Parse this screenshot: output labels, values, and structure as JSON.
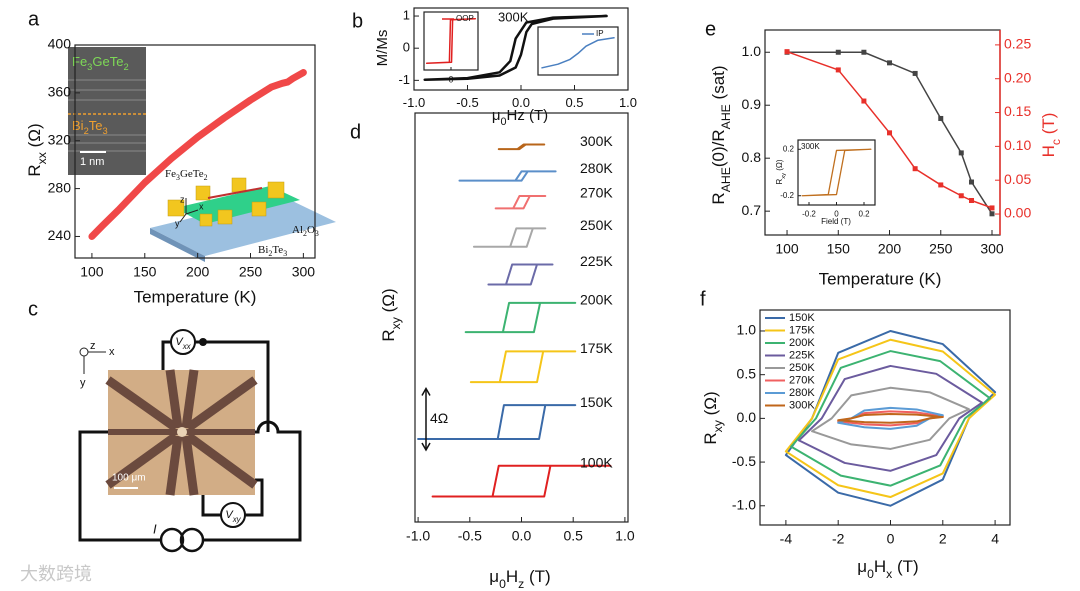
{
  "chart_data": [
    {
      "type": "line",
      "panel": "a",
      "xlabel": "Temperature (K)",
      "ylabel": [
        "R",
        "xx",
        " (Ω)"
      ],
      "xlim": [
        84,
        311
      ],
      "ylim": [
        222,
        400
      ],
      "xticks": [
        100,
        150,
        200,
        250,
        300
      ],
      "yticks": [
        240,
        280,
        320,
        360,
        400
      ],
      "series": [
        {
          "color": "#f04848",
          "x": [
            100,
            110,
            125,
            150,
            175,
            200,
            225,
            250,
            270,
            280,
            285,
            290,
            300
          ],
          "values": [
            240,
            249,
            262,
            285,
            305,
            323,
            339,
            354,
            365,
            368,
            369,
            372,
            377
          ]
        }
      ]
    },
    {
      "type": "line",
      "panel": "b",
      "xlabel": [
        "μ",
        "0",
        "Hz (T)"
      ],
      "ylabel": "M/Ms",
      "annotation": "300K",
      "xlim": [
        -1,
        1
      ],
      "ylim": [
        -1.3,
        1.25
      ],
      "xticks": [
        {
          "value": -1,
          "label": "-1.0"
        },
        {
          "value": -0.5,
          "label": "-0.5"
        },
        {
          "value": 0,
          "label": "0.0"
        },
        {
          "value": 0.5,
          "label": "0.5"
        },
        {
          "value": 1,
          "label": "1.0"
        }
      ],
      "yticks": [
        -1,
        0,
        1
      ],
      "series": [
        {
          "color": "#111111",
          "x": [
            -0.9,
            -0.5,
            -0.2,
            -0.05,
            0,
            0.05,
            0.1,
            0.3,
            0.8,
            0.3,
            0.05,
            -0.05,
            -0.1,
            -0.2,
            -0.5,
            -0.9
          ],
          "values": [
            -0.98,
            -0.95,
            -0.85,
            -0.6,
            -0.2,
            0.5,
            0.75,
            0.92,
            1.0,
            0.95,
            0.8,
            0.3,
            -0.4,
            -0.75,
            -0.93,
            -0.98
          ]
        }
      ]
    },
    {
      "type": "line",
      "xlim": [
        -1,
        1
      ],
      "ylim": [
        -1.3,
        1.3
      ],
      "xticks": [
        0
      ],
      "legend": "upper right",
      "series": [
        {
          "name": "OOP",
          "color": "#e02020",
          "x": [
            -0.9,
            0.02,
            0.06,
            0.9,
            -0.02,
            -0.06,
            -0.9
          ],
          "values": [
            -1,
            -0.95,
            0.95,
            1,
            0.95,
            -0.95,
            -1
          ]
        }
      ]
    },
    {
      "type": "line",
      "xlim": [
        -1,
        1
      ],
      "ylim": [
        -1,
        1
      ],
      "legend": "upper right",
      "series": [
        {
          "name": "IP",
          "color": "#4a7fc0",
          "x": [
            -0.9,
            -0.5,
            -0.2,
            0,
            0.2,
            0.5,
            0.9
          ],
          "values": [
            -0.7,
            -0.55,
            -0.35,
            -0.1,
            0.2,
            0.45,
            0.55
          ]
        }
      ]
    },
    {
      "type": "line",
      "panel": "d",
      "xlabel": [
        "μ",
        "0",
        "H",
        "z",
        " (T)"
      ],
      "ylabel": [
        "R",
        "xy",
        " (Ω)"
      ],
      "xlim": [
        -1.03,
        1.03
      ],
      "ylim": [
        0,
        26.6
      ],
      "legend": "inline",
      "scalebar": {
        "value": 4,
        "label": "4Ω"
      },
      "xticks": [
        {
          "value": -1,
          "label": "-1.0"
        },
        {
          "value": -0.5,
          "label": "-0.5"
        },
        {
          "value": 0,
          "label": "0.0"
        },
        {
          "value": 0.5,
          "label": "0.5"
        },
        {
          "value": 1,
          "label": "1.0"
        }
      ],
      "series": [
        {
          "name": "300K",
          "color": "#b8651a",
          "x": [
            -0.22,
            -0.02,
            0.04,
            0.22,
            0.02,
            -0.04,
            -0.22
          ],
          "values": [
            24.25,
            24.25,
            24.55,
            24.55,
            24.55,
            24.25,
            24.25
          ]
        },
        {
          "name": "280K",
          "color": "#5b8fc9",
          "x": [
            -0.6,
            0.0,
            0.06,
            0.33,
            0.0,
            -0.06,
            -0.6
          ],
          "values": [
            22.2,
            22.2,
            22.8,
            22.8,
            22.8,
            22.2,
            22.2
          ]
        },
        {
          "name": "270K",
          "color": "#f07070",
          "x": [
            -0.25,
            0.02,
            0.08,
            0.23,
            -0.02,
            -0.08,
            -0.25
          ],
          "values": [
            20.4,
            20.4,
            21.2,
            21.2,
            21.2,
            20.4,
            20.4
          ]
        },
        {
          "name": "250K",
          "color": "#a8a8a8",
          "x": [
            -0.46,
            0.05,
            0.11,
            0.23,
            -0.05,
            -0.11,
            -0.46
          ],
          "values": [
            17.9,
            17.9,
            19.1,
            19.1,
            19.1,
            17.9,
            17.9
          ]
        },
        {
          "name": "225K",
          "color": "#6b6ba8",
          "x": [
            -0.32,
            0.09,
            0.15,
            0.3,
            -0.09,
            -0.15,
            -0.32
          ],
          "values": [
            15.45,
            15.45,
            16.75,
            16.75,
            16.75,
            15.45,
            15.45
          ]
        },
        {
          "name": "200K",
          "color": "#3cb371",
          "x": [
            -0.54,
            0.12,
            0.18,
            0.52,
            -0.12,
            -0.18,
            -0.54
          ],
          "values": [
            12.35,
            12.35,
            14.25,
            14.25,
            14.25,
            12.35,
            12.35
          ]
        },
        {
          "name": "175K",
          "color": "#f5c518",
          "x": [
            -0.49,
            0.15,
            0.21,
            0.52,
            -0.15,
            -0.21,
            -0.49
          ],
          "values": [
            9.1,
            9.1,
            11.1,
            11.1,
            11.1,
            9.1,
            9.1
          ]
        },
        {
          "name": "150K",
          "color": "#3a6aa8",
          "x": [
            -1.0,
            0.17,
            0.23,
            0.52,
            -0.17,
            -0.23,
            -1.0
          ],
          "values": [
            5.4,
            5.4,
            7.6,
            7.6,
            7.6,
            5.4,
            5.4
          ]
        },
        {
          "name": "100K",
          "color": "#e02020",
          "x": [
            -0.86,
            0.22,
            0.28,
            0.86,
            -0.22,
            -0.28,
            -0.86
          ],
          "values": [
            1.66,
            1.66,
            3.66,
            3.66,
            3.66,
            1.66,
            1.66
          ]
        }
      ]
    },
    {
      "type": "line",
      "panel": "e",
      "xlabel": "Temperature (K)",
      "ylabel": [
        "R",
        "AHE",
        "(0)/R",
        "AHE",
        " (sat)"
      ],
      "y2label": [
        "H",
        "c",
        " (T)"
      ],
      "xlim": [
        78.5,
        307.8
      ],
      "ylim": [
        0.655,
        1.042
      ],
      "y2lim": [
        -0.031,
        0.272
      ],
      "y2color": "#e8302a",
      "marker": "square",
      "xticks": [
        100,
        150,
        200,
        250,
        300
      ],
      "yticks": [
        0.7,
        0.8,
        0.9,
        {
          "value": 1,
          "label": "1.0"
        }
      ],
      "y2ticks": [
        {
          "value": 0,
          "label": "0.00"
        },
        {
          "value": 0.05,
          "label": "0.05"
        },
        {
          "value": 0.1,
          "label": "0.10"
        },
        {
          "value": 0.15,
          "label": "0.15"
        },
        {
          "value": 0.2,
          "label": "0.20"
        },
        {
          "value": 0.25,
          "label": "0.25"
        }
      ],
      "series": [
        {
          "color": "#444444",
          "x": [
            100,
            150,
            175,
            200,
            225,
            250,
            270,
            280,
            300
          ],
          "values": [
            1.0,
            1.0,
            1.0,
            0.98,
            0.96,
            0.875,
            0.81,
            0.755,
            0.695
          ]
        },
        {
          "color": "#e8302a",
          "axis": "y2",
          "x": [
            100,
            150,
            175,
            200,
            225,
            250,
            270,
            280,
            300
          ],
          "values": [
            0.24,
            0.213,
            0.167,
            0.12,
            0.067,
            0.043,
            0.027,
            0.02,
            0.009
          ]
        }
      ]
    },
    {
      "type": "line",
      "xlabel": "Field (T)",
      "ylabel": [
        "R",
        "xy",
        " (Ω)"
      ],
      "annotation": "300K",
      "xlim": [
        -0.28,
        0.28
      ],
      "ylim": [
        -0.28,
        0.28
      ],
      "xticks": [
        -0.2,
        0,
        0.2
      ],
      "yticks": [
        -0.2,
        0.2
      ],
      "series": [
        {
          "color": "#c07020",
          "x": [
            -0.25,
            0,
            0.03,
            0.06,
            0.25,
            0,
            -0.03,
            -0.06,
            -0.25
          ],
          "values": [
            -0.2,
            -0.19,
            0,
            0.19,
            0.2,
            0.19,
            0,
            -0.19,
            -0.2
          ]
        }
      ]
    },
    {
      "type": "line",
      "panel": "f",
      "xlabel": [
        "μ",
        "0",
        "H",
        "x",
        " (T)"
      ],
      "ylabel": [
        "R",
        "xy",
        " (Ω)"
      ],
      "xlim": [
        -4.99,
        4.57
      ],
      "ylim": [
        -1.22,
        1.24
      ],
      "legend": "upper left",
      "xticks": [
        -4,
        -2,
        0,
        2,
        4
      ],
      "yticks": [
        {
          "value": -1,
          "label": "-1.0"
        },
        {
          "value": -0.5,
          "label": "-0.5"
        },
        {
          "value": 0,
          "label": "0.0"
        },
        {
          "value": 0.5,
          "label": "0.5"
        },
        {
          "value": 1,
          "label": "1.0"
        }
      ],
      "series": [
        {
          "name": "150K",
          "color": "#3a6aa8",
          "x": [
            -4,
            -2,
            0,
            2,
            3,
            4,
            2,
            0,
            -2,
            -3,
            -4
          ],
          "values": [
            -0.42,
            -0.85,
            -1,
            -0.7,
            0,
            0.3,
            0.85,
            1,
            0.75,
            0,
            -0.42
          ]
        },
        {
          "name": "175K",
          "color": "#f5c518",
          "x": [
            -4,
            -2,
            0,
            2,
            3,
            4,
            2,
            0,
            -2,
            -3,
            -4
          ],
          "values": [
            -0.378,
            -0.765,
            -0.9,
            -0.63,
            0,
            0.27,
            0.765,
            0.9,
            0.675,
            0,
            -0.378
          ]
        },
        {
          "name": "200K",
          "color": "#3cb371",
          "x": [
            -3.8,
            -1.9,
            0,
            1.9,
            2.85,
            3.8,
            1.9,
            0,
            -1.9,
            -2.85,
            -3.8
          ],
          "values": [
            -0.323,
            -0.655,
            -0.77,
            -0.539,
            0,
            0.231,
            0.655,
            0.77,
            0.578,
            0,
            -0.323
          ]
        },
        {
          "name": "225K",
          "color": "#6b5b9e",
          "x": [
            -3.5,
            -1.75,
            0,
            1.75,
            2.63,
            3.5,
            1.75,
            0,
            -1.75,
            -2.63,
            -3.5
          ],
          "values": [
            -0.252,
            -0.51,
            -0.6,
            -0.42,
            0,
            0.18,
            0.51,
            0.6,
            0.45,
            0,
            -0.252
          ]
        },
        {
          "name": "250K",
          "color": "#999999",
          "x": [
            -3,
            -1.5,
            0,
            1.5,
            2.25,
            3,
            1.5,
            0,
            -1.5,
            -2.25,
            -3
          ],
          "values": [
            -0.147,
            -0.298,
            -0.35,
            -0.245,
            0,
            0.105,
            0.298,
            0.35,
            0.263,
            0,
            -0.147
          ]
        },
        {
          "name": "270K",
          "color": "#f06060",
          "x": [
            -2,
            -1,
            0,
            1,
            1.5,
            2,
            1,
            0,
            -1,
            -1.5,
            -2
          ],
          "values": [
            -0.034,
            -0.068,
            -0.08,
            -0.056,
            0,
            0.024,
            0.068,
            0.08,
            0.06,
            0,
            -0.034
          ]
        },
        {
          "name": "280K",
          "color": "#5b9bd5",
          "x": [
            -2,
            -1,
            0,
            1,
            1.5,
            2,
            1,
            0,
            -1,
            -1.5,
            -2
          ],
          "values": [
            -0.05,
            -0.102,
            -0.12,
            -0.084,
            0,
            0.036,
            0.102,
            0.12,
            0.09,
            0,
            -0.05
          ]
        },
        {
          "name": "300K",
          "color": "#c0661a",
          "x": [
            -2,
            -1,
            0,
            1,
            1.5,
            2,
            1,
            0,
            -1,
            -1.5,
            -2
          ],
          "values": [
            -0.021,
            -0.043,
            -0.05,
            -0.035,
            0,
            0.015,
            0.043,
            0.05,
            0.038,
            0,
            -0.021
          ]
        }
      ]
    }
  ],
  "diagrams": {
    "a_tem": {
      "top_layer": [
        "Fe",
        "3",
        "GeTe",
        "2"
      ],
      "bottom_layer": [
        "Bi",
        "2",
        "Te",
        "3"
      ],
      "scale": "1 nm"
    },
    "a_device": {
      "flake": [
        "Fe",
        "3",
        "GeTe",
        "2"
      ],
      "film": [
        "Bi",
        "2",
        "Te",
        "3"
      ],
      "substrate": [
        "Al",
        "2",
        "O",
        "3"
      ],
      "axes": [
        "z",
        "x",
        "y"
      ]
    },
    "c": {
      "panel": "c",
      "axes": [
        "z",
        "x",
        "y"
      ],
      "vxx": [
        "V",
        "xx"
      ],
      "vxy": [
        "V",
        "xy"
      ],
      "current": "I",
      "scale": "100 μm"
    }
  },
  "watermark": "大数跨境"
}
